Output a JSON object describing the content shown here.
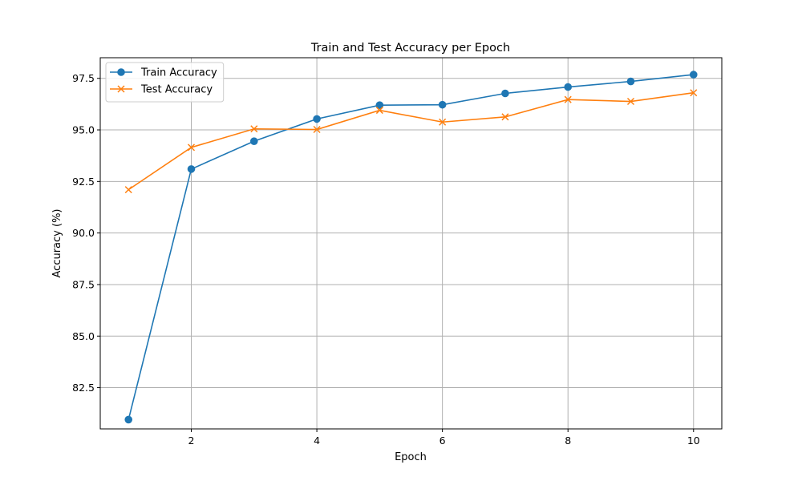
{
  "chart_data": {
    "type": "line",
    "title": "Train and Test Accuracy per Epoch",
    "xlabel": "Epoch",
    "ylabel": "Accuracy (%)",
    "x": [
      1,
      2,
      3,
      4,
      5,
      6,
      7,
      8,
      9,
      10
    ],
    "xlim": [
      0.55,
      10.45
    ],
    "ylim": [
      80.5,
      98.5
    ],
    "xticks": [
      2,
      4,
      6,
      8,
      10
    ],
    "xtick_labels": [
      "2",
      "4",
      "6",
      "8",
      "10"
    ],
    "yticks": [
      82.5,
      85.0,
      87.5,
      90.0,
      92.5,
      95.0,
      97.5
    ],
    "ytick_labels": [
      "82.5",
      "85.0",
      "87.5",
      "90.0",
      "92.5",
      "95.0",
      "97.5"
    ],
    "grid": true,
    "legend_position": "top-left",
    "series": [
      {
        "name": "Train Accuracy",
        "color": "#1f77b4",
        "marker": "circle",
        "values": [
          80.95,
          93.1,
          94.45,
          95.53,
          96.2,
          96.22,
          96.77,
          97.08,
          97.35,
          97.68
        ]
      },
      {
        "name": "Test Accuracy",
        "color": "#ff7f0e",
        "marker": "x",
        "values": [
          92.1,
          94.15,
          95.05,
          95.02,
          95.95,
          95.38,
          95.63,
          96.47,
          96.38,
          96.8
        ]
      }
    ]
  }
}
